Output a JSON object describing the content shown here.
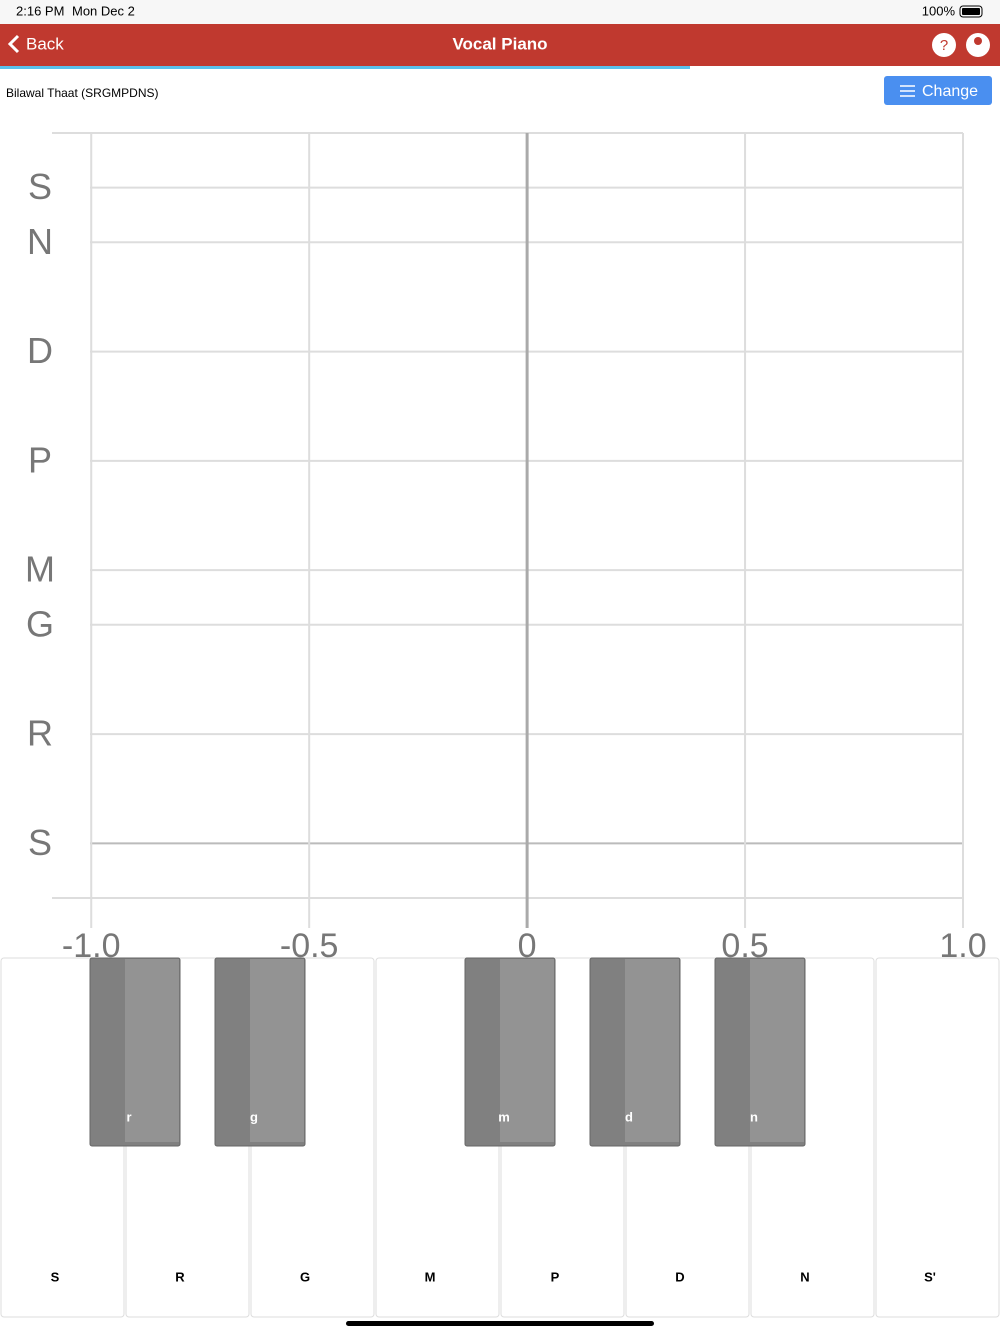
{
  "status": {
    "time": "2:16 PM",
    "date": "Mon Dec 2",
    "battery": "100%"
  },
  "nav": {
    "back": "Back",
    "title": "Vocal Piano"
  },
  "thaat": "Bilawal Thaat (SRGMPDNS)",
  "button": "Change",
  "chart_data": {
    "type": "line",
    "xlim": [
      -1.09,
      1.0
    ],
    "xticks": [
      {
        "value": -1,
        "label": "-1.0"
      },
      -0.5,
      0,
      0.5,
      {
        "value": 1,
        "label": "1.0"
      }
    ],
    "ylim": [
      -1,
      13
    ],
    "yticks": [
      {
        "value": 0,
        "label": "S"
      },
      {
        "value": 2,
        "label": "R"
      },
      {
        "value": 4,
        "label": "G"
      },
      {
        "value": 5,
        "label": "M"
      },
      {
        "value": 7,
        "label": "P"
      },
      {
        "value": 9,
        "label": "D"
      },
      {
        "value": 11,
        "label": "N"
      },
      {
        "value": 12,
        "label": "S"
      }
    ],
    "grid": true
  },
  "piano": {
    "white_keys": [
      "S",
      "R",
      "G",
      "M",
      "P",
      "D",
      "N",
      "S'"
    ],
    "black_keys": [
      "r",
      "g",
      "m",
      "d",
      "n"
    ]
  }
}
